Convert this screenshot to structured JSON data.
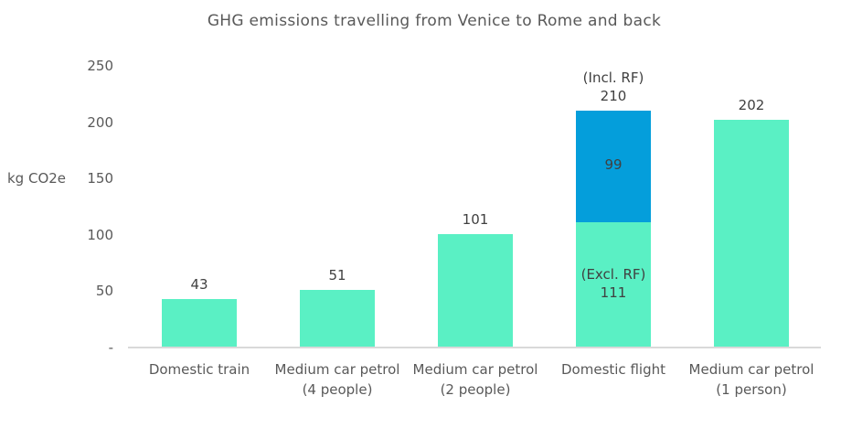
{
  "chart_data": {
    "type": "bar",
    "stacked": true,
    "title": "GHG emissions travelling from Venice to Rome and back",
    "ylabel": "kg CO2e",
    "xlabel": "",
    "ylim": [
      0,
      250
    ],
    "grid": false,
    "legend_position": "none",
    "yticks": [
      {
        "value": 0,
        "label": "-"
      },
      {
        "value": 50,
        "label": "50"
      },
      {
        "value": 100,
        "label": "100"
      },
      {
        "value": 150,
        "label": "150"
      },
      {
        "value": 200,
        "label": "200"
      },
      {
        "value": 250,
        "label": "250"
      }
    ],
    "colors": {
      "default_bar": "#5af0c4",
      "rf_bar": "#049edb",
      "axis_line": "#d9d9d9",
      "title_text": "#595959",
      "tick_text": "#595959",
      "label_text": "#404040"
    },
    "categories": [
      "Domestic train",
      "Medium car petrol (4 people)",
      "Medium car petrol (2 people)",
      "Domestic flight",
      "Medium car petrol (1 person)"
    ],
    "bars": [
      {
        "category_lines": [
          "Domestic train"
        ],
        "total": 43,
        "top_label_lines": [
          "43"
        ],
        "segments": [
          {
            "value": 43,
            "color": "default_bar",
            "inner_label_lines": []
          }
        ]
      },
      {
        "category_lines": [
          "Medium car petrol",
          "(4 people)"
        ],
        "total": 51,
        "top_label_lines": [
          "51"
        ],
        "segments": [
          {
            "value": 51,
            "color": "default_bar",
            "inner_label_lines": []
          }
        ]
      },
      {
        "category_lines": [
          "Medium car petrol",
          "(2 people)"
        ],
        "total": 101,
        "top_label_lines": [
          "101"
        ],
        "segments": [
          {
            "value": 101,
            "color": "default_bar",
            "inner_label_lines": []
          }
        ]
      },
      {
        "category_lines": [
          "Domestic flight"
        ],
        "total": 210,
        "top_label_lines": [
          "(Incl. RF)",
          "210"
        ],
        "segments": [
          {
            "value": 111,
            "color": "default_bar",
            "inner_label_lines": [
              "(Excl. RF)",
              "111"
            ]
          },
          {
            "value": 99,
            "color": "rf_bar",
            "inner_label_lines": [
              "99"
            ]
          }
        ]
      },
      {
        "category_lines": [
          "Medium car petrol",
          "(1 person)"
        ],
        "total": 202,
        "top_label_lines": [
          "202"
        ],
        "segments": [
          {
            "value": 202,
            "color": "default_bar",
            "inner_label_lines": []
          }
        ]
      }
    ]
  }
}
